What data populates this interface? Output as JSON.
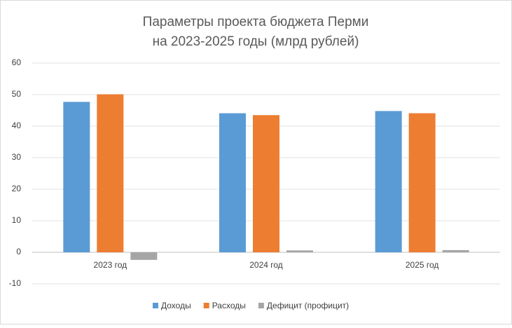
{
  "chart_data": {
    "type": "bar",
    "title": [
      "Параметры проекта бюджета Перми",
      "на 2023-2025 годы (млрд рублей)"
    ],
    "categories": [
      "2023 год",
      "2024 год",
      "2025 год"
    ],
    "series": [
      {
        "name": "Доходы",
        "color": "#5b9bd5",
        "values": [
          47.7,
          44.1,
          44.8
        ]
      },
      {
        "name": "Расходы",
        "color": "#ed7d31",
        "values": [
          50.1,
          43.5,
          44.1
        ]
      },
      {
        "name": "Дефицит (профицит)",
        "color": "#a5a5a5",
        "values": [
          -2.4,
          0.6,
          0.7
        ]
      }
    ],
    "ylim": [
      -10,
      60
    ],
    "yticks": [
      -10,
      0,
      10,
      20,
      30,
      40,
      50,
      60
    ],
    "grid": true,
    "legend": "bottom"
  }
}
